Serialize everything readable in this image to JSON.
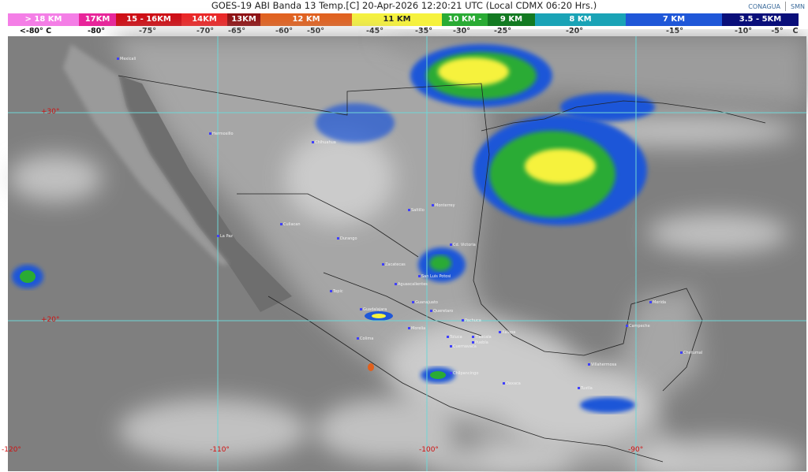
{
  "header": {
    "title": "GOES-19 ABI Banda 13 Temp.[C] 20-Apr-2026 12:20:21 UTC (Local CDMX  06:20 Hrs.)",
    "logos": [
      "CONAGUA",
      "SMN"
    ]
  },
  "legend": {
    "segments": [
      {
        "label": "> 18 KM",
        "color": "#f47ee6"
      },
      {
        "label": "17KM",
        "color": "#e8259a"
      },
      {
        "label": "15 - 16KM",
        "color": "#cf0a12"
      },
      {
        "label": "14KM",
        "color": "#ec2424"
      },
      {
        "label": "13KM",
        "color": "#8e0e10"
      },
      {
        "label": "12 KM",
        "color": "#e2601c"
      },
      {
        "label": "11 KM",
        "color": "#f6f23e"
      },
      {
        "label": "10 KM -",
        "color": "#2aab34"
      },
      {
        "label": "9 KM",
        "color": "#137a22"
      },
      {
        "label": "8 KM",
        "color": "#1aa3b6"
      },
      {
        "label": "7 KM",
        "color": "#1f57d8"
      },
      {
        "label": "3.5 - 5KM",
        "color": "#0a0f7a"
      }
    ],
    "temps": [
      "<-80° C",
      "-80°",
      "-75°",
      "-70°",
      "-65°",
      "-60°",
      "-50°",
      "-45°",
      "-35°",
      "-30°",
      "-25°",
      "-20°",
      "-15°",
      "-10°",
      "-5°",
      "C"
    ]
  },
  "map": {
    "grid_color": "#6fd6d6",
    "lat_labels": [
      "+30°",
      "+20°"
    ],
    "lon_labels": [
      "-120°",
      "-110°",
      "-100°",
      "-90°"
    ],
    "cities": [
      "Mexicali",
      "Hermosillo",
      "Chihuahua",
      "Culiacan",
      "La Paz",
      "Durango",
      "Monterrey",
      "Saltillo",
      "Cd. Victoria",
      "Zacatecas",
      "San Luis Potosi",
      "Aguascalientes",
      "Tepic",
      "Guadalajara",
      "Guanajuato",
      "Queretaro",
      "Pachuca",
      "Morelia",
      "Colima",
      "Toluca",
      "Tlaxcala",
      "Puebla",
      "Cuernavaca",
      "Xalapa",
      "Chilpancingo",
      "Oaxaca",
      "Merida",
      "Campeche",
      "Chetumal",
      "Villahermosa",
      "Tuxtla"
    ]
  }
}
